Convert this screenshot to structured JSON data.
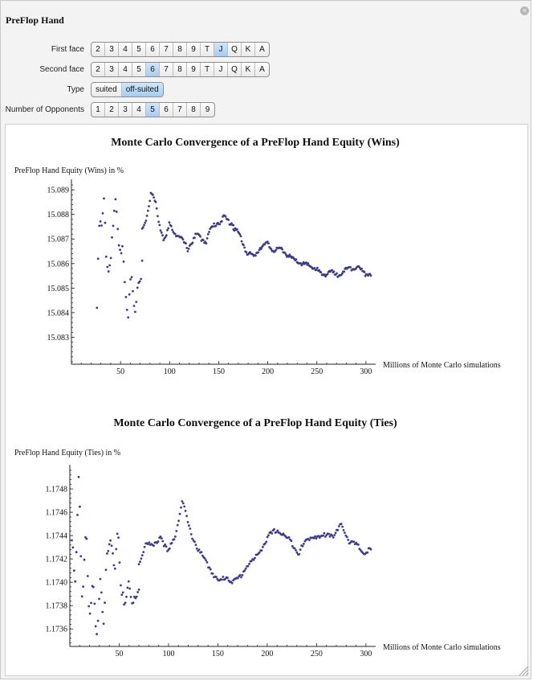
{
  "window": {
    "title": "PreFlop Hand",
    "close_icon": "close-icon"
  },
  "controls": [
    {
      "key": "first",
      "label": "First face",
      "options": [
        "2",
        "3",
        "4",
        "5",
        "6",
        "7",
        "8",
        "9",
        "T",
        "J",
        "Q",
        "K",
        "A"
      ],
      "selected": "J"
    },
    {
      "key": "second",
      "label": "Second face",
      "options": [
        "2",
        "3",
        "4",
        "5",
        "6",
        "7",
        "8",
        "9",
        "T",
        "J",
        "Q",
        "K",
        "A"
      ],
      "selected": "6"
    },
    {
      "key": "type",
      "label": "Type",
      "options": [
        "suited",
        "off-suited"
      ],
      "selected": "off-suited"
    },
    {
      "key": "opponents",
      "label": "Number of Opponents",
      "options": [
        "1",
        "2",
        "3",
        "4",
        "5",
        "6",
        "7",
        "8",
        "9"
      ],
      "selected": "5"
    }
  ],
  "chart_data": [
    {
      "type": "scatter",
      "title": "Monte Carlo Convergence of a PreFlop Hand Equity (Wins)",
      "ylabel": "PreFlop Hand Equity (Wins) in %",
      "xlabel": "Millions of Monte Carlo simulations",
      "xlim": [
        0,
        305
      ],
      "ylim": [
        15.0819,
        15.0893
      ],
      "xticks": [
        50,
        100,
        150,
        200,
        250,
        300
      ],
      "yticks": [
        15.083,
        15.084,
        15.085,
        15.086,
        15.087,
        15.088,
        15.089
      ],
      "ytick_labels": [
        "15.083",
        "15.084",
        "15.085",
        "15.086",
        "15.087",
        "15.088",
        "15.089"
      ],
      "color": "#3b3b8f",
      "segments": [
        {
          "x_start": 26,
          "x_end": 72,
          "points": 40,
          "y": [
            15.0842,
            15.0876,
            15.0874,
            15.0885,
            15.0863,
            15.0856,
            15.0867,
            15.0878,
            15.0884,
            15.0868,
            15.0861,
            15.0866,
            15.0851,
            15.0839,
            15.0857,
            15.0847,
            15.0838,
            15.0848,
            15.0849,
            15.0862
          ]
        },
        {
          "x_start": 72,
          "x_end": 165,
          "points": 95,
          "y": [
            15.0874,
            15.0879,
            15.0889,
            15.0884,
            15.0874,
            15.0869,
            15.0876,
            15.0873,
            15.0871,
            15.0869,
            15.0866,
            15.0869,
            15.0872,
            15.087,
            15.0869,
            15.0874,
            15.0876,
            15.0877,
            15.0879,
            15.0877,
            15.0876
          ]
        },
        {
          "x_start": 165,
          "x_end": 305,
          "points": 150,
          "y": [
            15.0875,
            15.0871,
            15.0864,
            15.0863,
            15.0867,
            15.0868,
            15.0865,
            15.0866,
            15.0863,
            15.0861,
            15.086,
            15.0859,
            15.0858,
            15.0855,
            15.0857,
            15.0855,
            15.0857,
            15.0858,
            15.0859,
            15.0856,
            15.0856
          ]
        }
      ]
    },
    {
      "type": "scatter",
      "title": "Monte Carlo Convergence of a PreFlop Hand Equity (Ties)",
      "ylabel": "PreFlop Hand Equity (Ties) in %",
      "xlabel": "Millions of Monte Carlo simulations",
      "xlim": [
        0,
        305
      ],
      "ylim": [
        1.17345,
        1.17498
      ],
      "xticks": [
        50,
        100,
        150,
        200,
        250,
        300
      ],
      "yticks": [
        1.1736,
        1.1738,
        1.174,
        1.1742,
        1.1744,
        1.1746,
        1.1748
      ],
      "ytick_labels": [
        "1.1736",
        "1.1738",
        "1.1740",
        "1.1742",
        "1.1744",
        "1.1746",
        "1.1748"
      ],
      "color": "#3b3b8f",
      "segments": [
        {
          "x_start": 2,
          "x_end": 70,
          "points": 60,
          "y": [
            1.17436,
            1.17395,
            1.17492,
            1.1738,
            1.17455,
            1.1736,
            1.174,
            1.17345,
            1.1741,
            1.1737,
            1.1742,
            1.17435,
            1.17405,
            1.1745,
            1.17395,
            1.17375,
            1.174,
            1.17385,
            1.1739,
            1.174
          ]
        },
        {
          "x_start": 70,
          "x_end": 305,
          "points": 205,
          "y": [
            1.17415,
            1.17435,
            1.1743,
            1.1744,
            1.17425,
            1.1744,
            1.1747,
            1.17445,
            1.1743,
            1.1742,
            1.1741,
            1.174,
            1.17405,
            1.174,
            1.17405,
            1.17415,
            1.1742,
            1.1743,
            1.1744,
            1.17445,
            1.1744,
            1.17435,
            1.17425,
            1.17435,
            1.1744,
            1.17438,
            1.17442,
            1.1744,
            1.1745,
            1.17435,
            1.17432,
            1.17425,
            1.17428
          ]
        }
      ]
    }
  ]
}
